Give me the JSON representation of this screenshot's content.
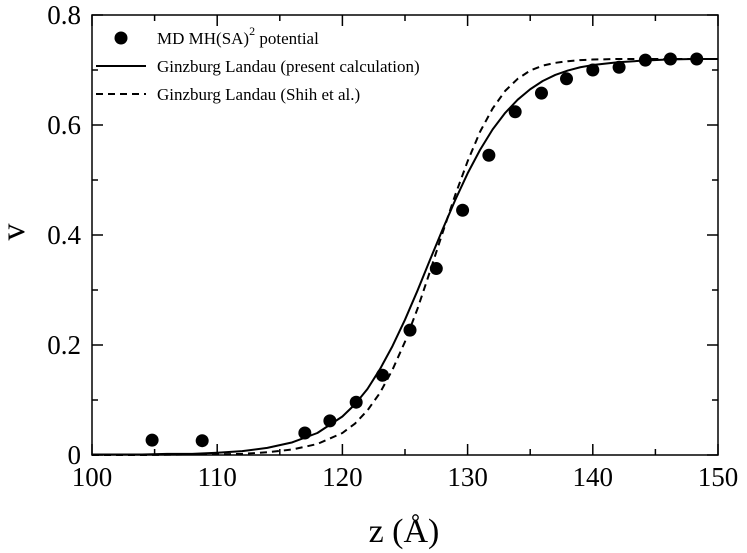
{
  "chart_data": {
    "type": "scatter+line",
    "title": "",
    "xlabel": "z (Å)",
    "ylabel": "v",
    "xlim": [
      100,
      150
    ],
    "ylim": [
      0,
      0.8
    ],
    "x_ticks": [
      100,
      110,
      120,
      130,
      140,
      150
    ],
    "x_tick_labels": [
      "100",
      "110",
      "120",
      "130",
      "140",
      "150"
    ],
    "y_ticks": [
      0,
      0.2,
      0.4,
      0.6,
      0.8
    ],
    "y_tick_labels": [
      "0",
      "0.2",
      "0.4",
      "0.6",
      "0.8"
    ],
    "grid": false,
    "legend_position": "top-left",
    "legend": [
      {
        "label": "MD MH(SA)",
        "superscript": "2",
        "suffix": " potential",
        "style": "marker"
      },
      {
        "label": "Ginzburg Landau (present calculation)",
        "style": "solid"
      },
      {
        "label": "Ginzburg Landau (Shih et al.)",
        "style": "dashed"
      }
    ],
    "series": [
      {
        "name": "MD MH(SA)2 potential",
        "kind": "scatter",
        "color": "#000000",
        "x": [
          104.8,
          108.8,
          117.0,
          119.0,
          121.1,
          123.2,
          125.4,
          127.5,
          129.6,
          131.7,
          133.8,
          135.9,
          137.9,
          140.0,
          142.1,
          144.2,
          146.2,
          148.3
        ],
        "y": [
          0.027,
          0.026,
          0.04,
          0.062,
          0.096,
          0.145,
          0.227,
          0.339,
          0.445,
          0.545,
          0.624,
          0.658,
          0.684,
          0.7,
          0.705,
          0.718,
          0.72,
          0.72
        ]
      },
      {
        "name": "Ginzburg Landau (present calculation)",
        "kind": "line",
        "dash": "solid",
        "color": "#000000",
        "x": [
          100,
          102,
          104,
          106,
          108,
          110,
          112,
          114,
          116,
          118,
          120,
          121,
          122,
          123,
          124,
          125,
          126,
          127,
          128,
          129,
          130,
          131,
          132,
          133,
          134,
          135,
          136,
          137,
          138,
          139,
          140,
          142,
          144,
          146,
          148,
          150
        ],
        "y": [
          0.001,
          0.001,
          0.001,
          0.002,
          0.002,
          0.004,
          0.007,
          0.013,
          0.023,
          0.04,
          0.07,
          0.092,
          0.12,
          0.156,
          0.198,
          0.246,
          0.299,
          0.355,
          0.41,
          0.463,
          0.512,
          0.555,
          0.592,
          0.622,
          0.646,
          0.665,
          0.68,
          0.691,
          0.699,
          0.705,
          0.709,
          0.714,
          0.717,
          0.719,
          0.72,
          0.72
        ]
      },
      {
        "name": "Ginzburg Landau (Shih et al.)",
        "kind": "line",
        "dash": "dashed",
        "color": "#000000",
        "x": [
          100,
          104,
          108,
          110,
          112,
          114,
          116,
          118,
          120,
          121,
          122,
          123,
          124,
          125,
          126,
          127,
          128,
          129,
          130,
          131,
          132,
          133,
          134,
          135,
          136,
          137,
          138,
          139,
          140,
          142,
          144,
          146,
          148,
          150
        ],
        "y": [
          0.0,
          0.0,
          0.001,
          0.001,
          0.002,
          0.005,
          0.01,
          0.02,
          0.04,
          0.057,
          0.081,
          0.113,
          0.155,
          0.206,
          0.266,
          0.334,
          0.404,
          0.472,
          0.534,
          0.588,
          0.63,
          0.662,
          0.684,
          0.699,
          0.708,
          0.713,
          0.716,
          0.718,
          0.719,
          0.72,
          0.72,
          0.72,
          0.72,
          0.72
        ]
      }
    ]
  }
}
